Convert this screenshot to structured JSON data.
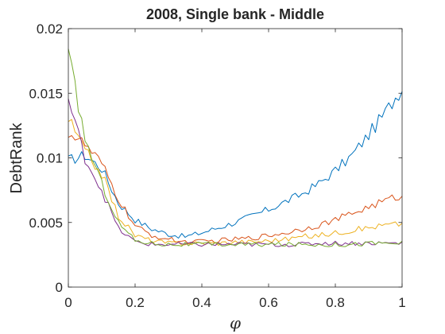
{
  "chart_data": {
    "type": "line",
    "title": "2008, Single bank - Middle",
    "xlabel": "φ",
    "ylabel": "DebtRank",
    "xlim": [
      0,
      1
    ],
    "ylim": [
      0,
      0.02
    ],
    "xticks": [
      0,
      0.2,
      0.4,
      0.6,
      0.8,
      1
    ],
    "xtick_labels": [
      "0",
      "0.2",
      "0.4",
      "0.6",
      "0.8",
      "1"
    ],
    "yticks": [
      0,
      0.005,
      0.01,
      0.015,
      0.02
    ],
    "ytick_labels": [
      "0",
      "0.005",
      "0.01",
      "0.015",
      "0.02"
    ],
    "grid": false,
    "legend": "none",
    "x": [
      0,
      0.05,
      0.1,
      0.15,
      0.2,
      0.25,
      0.3,
      0.35,
      0.4,
      0.45,
      0.5,
      0.55,
      0.6,
      0.65,
      0.7,
      0.75,
      0.8,
      0.85,
      0.9,
      0.95,
      1
    ],
    "series": [
      {
        "color": "#0072BD",
        "values": [
          0.0098,
          0.0102,
          0.0092,
          0.0065,
          0.0052,
          0.0045,
          0.0041,
          0.0039,
          0.0042,
          0.0046,
          0.005,
          0.0055,
          0.006,
          0.0066,
          0.0072,
          0.008,
          0.009,
          0.0102,
          0.0118,
          0.0135,
          0.0155
        ]
      },
      {
        "color": "#D95319",
        "values": [
          0.012,
          0.011,
          0.0095,
          0.0068,
          0.0047,
          0.004,
          0.0037,
          0.0035,
          0.0035,
          0.0036,
          0.0037,
          0.0038,
          0.004,
          0.0042,
          0.0045,
          0.0048,
          0.0052,
          0.0057,
          0.0062,
          0.0067,
          0.0071
        ]
      },
      {
        "color": "#EDB120",
        "values": [
          0.013,
          0.0105,
          0.0088,
          0.0055,
          0.004,
          0.0036,
          0.0034,
          0.0034,
          0.0034,
          0.0034,
          0.0035,
          0.0035,
          0.0036,
          0.0037,
          0.0039,
          0.004,
          0.0042,
          0.0044,
          0.0046,
          0.0048,
          0.0049
        ]
      },
      {
        "color": "#7E2F8E",
        "values": [
          0.0145,
          0.01,
          0.0075,
          0.0045,
          0.0035,
          0.0033,
          0.0033,
          0.0033,
          0.0033,
          0.0033,
          0.0033,
          0.0033,
          0.0033,
          0.0033,
          0.0033,
          0.0034,
          0.0034,
          0.0034,
          0.0034,
          0.0034,
          0.0034
        ]
      },
      {
        "color": "#77AC30",
        "values": [
          0.018,
          0.0115,
          0.008,
          0.005,
          0.0036,
          0.0034,
          0.0033,
          0.0033,
          0.0033,
          0.0033,
          0.0033,
          0.0033,
          0.0033,
          0.0033,
          0.0033,
          0.0033,
          0.0033,
          0.0033,
          0.0034,
          0.0034,
          0.0034
        ]
      }
    ]
  }
}
